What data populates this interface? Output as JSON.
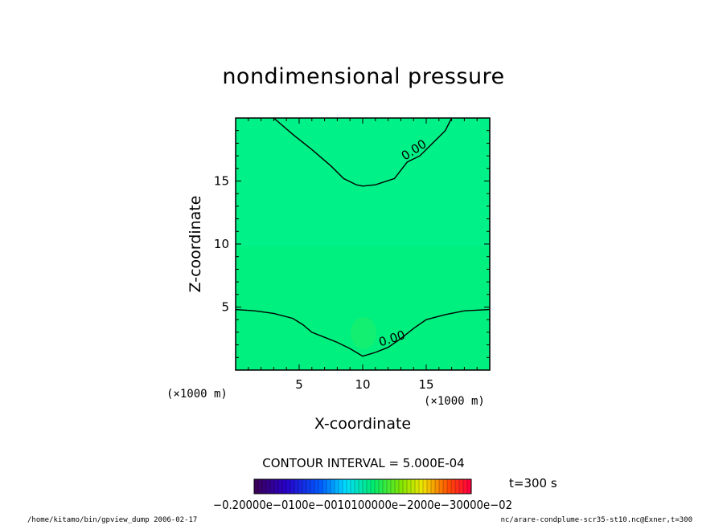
{
  "chart_data": {
    "type": "contour",
    "title": "nondimensional pressure",
    "xlabel": "X-coordinate",
    "ylabel": "Z-coordinate",
    "x_unit_label": "(×1000 m)",
    "y_unit_label": "(×1000 m)",
    "xlim": [
      0,
      20
    ],
    "ylim": [
      0,
      20
    ],
    "xticks": [
      5,
      10,
      15
    ],
    "yticks": [
      5,
      10,
      15
    ],
    "contour_interval_text": "CONTOUR INTERVAL = 5.000E-04",
    "time_text": "t=300 s",
    "field_color": "#00f07f",
    "contours": [
      {
        "label": "0.00",
        "points": [
          [
            3,
            20
          ],
          [
            4.5,
            18.7
          ],
          [
            6,
            17.5
          ],
          [
            7.5,
            16.2
          ],
          [
            8.5,
            15.2
          ],
          [
            9.5,
            14.7
          ],
          [
            10,
            14.6
          ],
          [
            11,
            14.7
          ],
          [
            12.5,
            15.2
          ],
          [
            13.5,
            16.5
          ],
          [
            14.5,
            17
          ],
          [
            15.5,
            18
          ],
          [
            16.5,
            19
          ],
          [
            17,
            20
          ]
        ]
      },
      {
        "label": "0.00",
        "points": [
          [
            0,
            4.8
          ],
          [
            1.5,
            4.7
          ],
          [
            3,
            4.5
          ],
          [
            4.5,
            4.1
          ],
          [
            5.3,
            3.6
          ],
          [
            6,
            3
          ],
          [
            7,
            2.6
          ],
          [
            8,
            2.2
          ],
          [
            9,
            1.7
          ],
          [
            10,
            1.1
          ],
          [
            11,
            1.4
          ],
          [
            12,
            1.8
          ],
          [
            13,
            2.5
          ],
          [
            14,
            3.3
          ],
          [
            15,
            4
          ],
          [
            16.5,
            4.4
          ],
          [
            18,
            4.7
          ],
          [
            20,
            4.8
          ]
        ]
      }
    ],
    "colorbar": {
      "tick_labels": [
        "-0.200E-02",
        "-0.100E-02",
        "0.00",
        "0.100E-02",
        "0.200E-02",
        "0.300E-02"
      ],
      "label_texts": [
        "−0.2000",
        "e-02",
        "0.1000",
        "e-02",
        "0.0100",
        "0.1000",
        "e-02",
        "0.2000",
        "e-0.30",
        "0.300",
        "e-02"
      ],
      "overlapped_text": "−0.20000e−0100e−0010100000e−2000e−30000e−02"
    }
  },
  "footer": {
    "left": "/home/kitamo/bin/gpview_dump  2006-02-17",
    "right": "nc/arare-condplume-scr35-st10.nc@Exner,t=300"
  }
}
